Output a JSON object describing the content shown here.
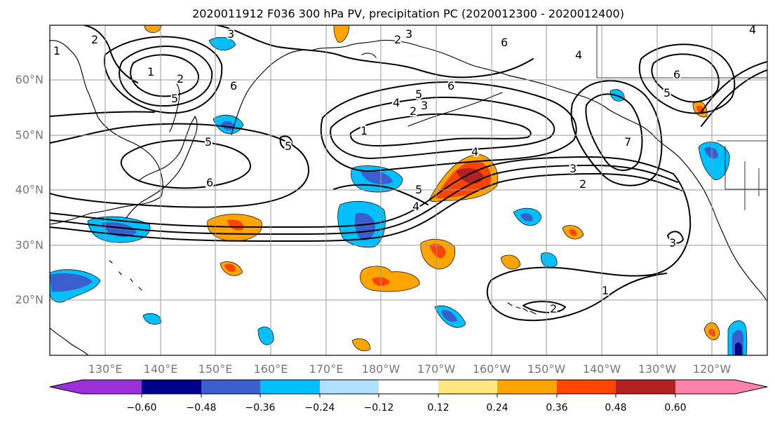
{
  "title": "2020011912 F036 300 hPa PV, precipitation PC (2020012300 - 2020012400)",
  "map": {
    "lat_ticks": [
      "60°N",
      "50°N",
      "40°N",
      "30°N",
      "20°N"
    ],
    "lon_ticks": [
      "130°E",
      "140°E",
      "150°E",
      "160°E",
      "170°E",
      "180°W",
      "170°W",
      "160°W",
      "150°W",
      "140°W",
      "130°W",
      "120°W"
    ],
    "contour_labels": {
      "c1": "2",
      "c2": "3",
      "c3": "2",
      "c4": "3",
      "c5": "1",
      "c6": "2",
      "c7": "5",
      "c8": "6",
      "c9": "4",
      "c10": "6",
      "c11": "6",
      "c12": "6",
      "c13": "5",
      "c14": "6",
      "c15": "1",
      "c16": "4",
      "c17": "5",
      "c18": "3",
      "c19": "2",
      "c20": "5",
      "c21": "4",
      "c22": "5",
      "c23": "4",
      "c24": "3",
      "c25": "2",
      "c26": "7",
      "c27": "3",
      "c28": "1",
      "c29": "2",
      "c30": "4",
      "c31": "6",
      "c32": "5",
      "c33": "1"
    }
  },
  "colorbar": {
    "tick_labels": [
      "−0.60",
      "−0.48",
      "−0.36",
      "−0.24",
      "−0.12",
      "0.12",
      "0.24",
      "0.36",
      "0.48",
      "0.60"
    ],
    "colors": [
      "#9b30d9",
      "#00008b",
      "#3a5fcd",
      "#00bfff",
      "#b0e0ff",
      "#ffffff",
      "#ffe680",
      "#ffa500",
      "#ff4500",
      "#b22222",
      "#ff82ab"
    ]
  }
}
